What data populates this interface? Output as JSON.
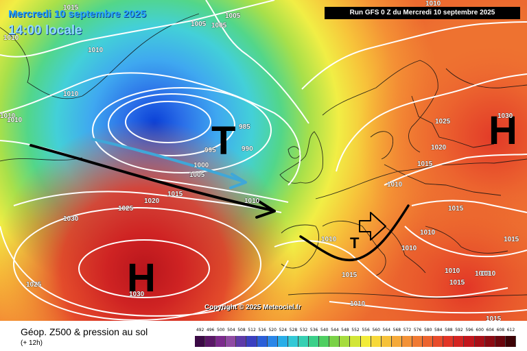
{
  "header": {
    "date": "Mercredi 10 septembre 2025",
    "time": "14:00 locale",
    "run": "Run GFS 0 Z du Mercredi 10 septembre 2025"
  },
  "copyright": "Copyright © 2025 Meteociel.fr",
  "footer": {
    "title": "Géop. Z500 & pression au sol",
    "subtitle": "(+ 12h)"
  },
  "pressure_systems": [
    {
      "symbol": "T",
      "type": "low",
      "color": "#000000"
    },
    {
      "symbol": "H",
      "type": "high",
      "color": "#000000"
    },
    {
      "symbol": "H",
      "type": "high",
      "color": "#000000"
    },
    {
      "symbol": "T",
      "type": "low",
      "color": "#000000"
    }
  ],
  "isobar_labels": [
    "1015",
    "1005",
    "1005",
    "1005",
    "1010",
    "1010",
    "1010",
    "1010",
    "1010",
    "985",
    "990",
    "995",
    "1000",
    "1005",
    "1025",
    "1020",
    "1015",
    "1010",
    "1030",
    "1025",
    "1030",
    "1025",
    "1030",
    "1020",
    "1015",
    "1010",
    "1015",
    "1015",
    "1010",
    "1010",
    "1010",
    "1010",
    "1015",
    "1015",
    "1010",
    "1015",
    "1010",
    "1010",
    "1010"
  ],
  "legend": {
    "values": [
      "492",
      "496",
      "500",
      "504",
      "508",
      "512",
      "516",
      "520",
      "524",
      "528",
      "532",
      "536",
      "540",
      "544",
      "548",
      "552",
      "556",
      "560",
      "564",
      "568",
      "572",
      "576",
      "580",
      "584",
      "588",
      "592",
      "596",
      "600",
      "604",
      "608",
      "612"
    ],
    "colors": [
      "#3b0a45",
      "#5a1767",
      "#7b2a8c",
      "#8f4aa3",
      "#5e3aa8",
      "#3a3fc0",
      "#2b5fd8",
      "#2a86e8",
      "#29aee8",
      "#33c9d6",
      "#37d0b3",
      "#3bd08a",
      "#4fcf62",
      "#7ad247",
      "#a6dc3e",
      "#d2e637",
      "#f2ec3a",
      "#f7d93a",
      "#f6c23a",
      "#f5aa3a",
      "#f39237",
      "#f07a33",
      "#ec642f",
      "#e84c2b",
      "#e23526",
      "#d42421",
      "#c2161c",
      "#a80f17",
      "#8b0a12",
      "#6a060d",
      "#3d0306"
    ]
  }
}
